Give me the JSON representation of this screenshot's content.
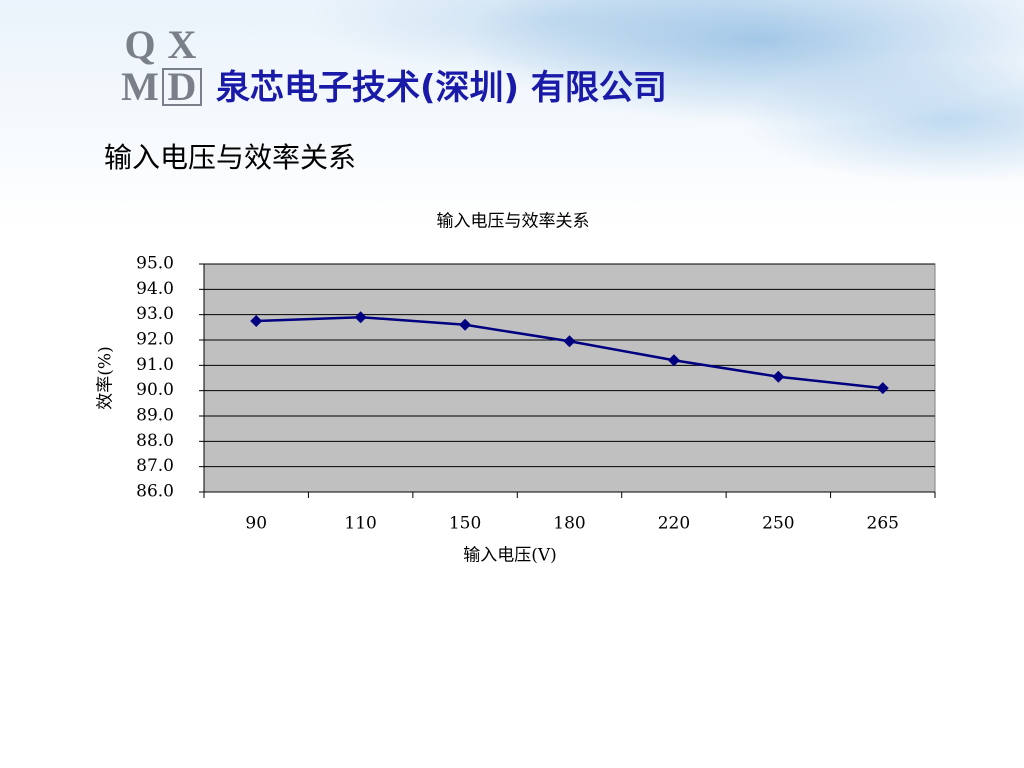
{
  "header": {
    "logo_letters": [
      "Q",
      "X",
      "M",
      "D"
    ],
    "company": "泉芯电子技术(深圳) 有限公司",
    "slide_title": "输入电压与效率关系"
  },
  "chart_data": {
    "type": "line",
    "title": "输入电压与效率关系",
    "x_label": "输入电压(V)",
    "y_label": "效率(%)",
    "categories": [
      "90",
      "110",
      "150",
      "180",
      "220",
      "250",
      "265"
    ],
    "series": [
      {
        "color": "#000080",
        "values": [
          92.75,
          92.9,
          92.6,
          91.95,
          91.2,
          90.55,
          90.1
        ]
      }
    ],
    "ylim": [
      86,
      95
    ],
    "yticks": [
      {
        "value": 86,
        "label": "86.0"
      },
      {
        "value": 87,
        "label": "87.0"
      },
      {
        "value": 88,
        "label": "88.0"
      },
      {
        "value": 89,
        "label": "89.0"
      },
      {
        "value": 90,
        "label": "90.0"
      },
      {
        "value": 91,
        "label": "91.0"
      },
      {
        "value": 92,
        "label": "92.0"
      },
      {
        "value": 93,
        "label": "93.0"
      },
      {
        "value": 94,
        "label": "94.0"
      },
      {
        "value": 95,
        "label": "95.0"
      }
    ],
    "grid": true,
    "plot_background": "#c0c0c0"
  }
}
